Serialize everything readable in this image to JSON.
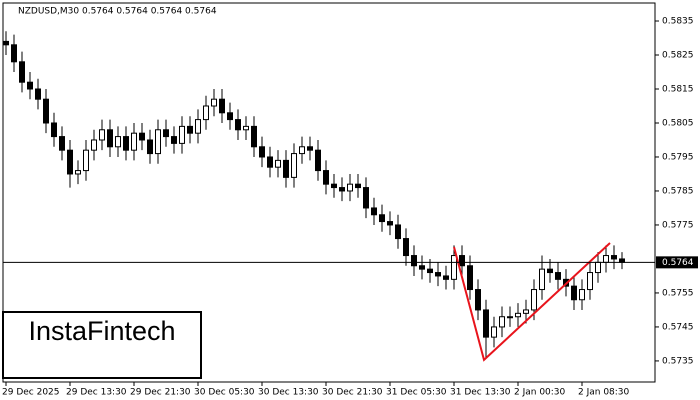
{
  "chart_data": {
    "type": "candlestick",
    "title": "NZDUSD,M30  0.5764 0.5764 0.5764 0.5764",
    "logo": "InstaFintech",
    "categories": [
      "29 Dec 2025",
      null,
      null,
      null,
      null,
      null,
      null,
      null,
      "29 Dec 13:30",
      null,
      null,
      null,
      null,
      null,
      null,
      null,
      "29 Dec 21:30",
      null,
      null,
      null,
      null,
      null,
      null,
      null,
      "30 Dec 05:30",
      null,
      null,
      null,
      null,
      null,
      null,
      null,
      "30 Dec 13:30",
      null,
      null,
      null,
      null,
      null,
      null,
      null,
      "30 Dec 21:30",
      null,
      null,
      null,
      null,
      null,
      null,
      null,
      "31 Dec 05:30",
      null,
      null,
      null,
      null,
      null,
      null,
      null,
      "31 Dec 13:30",
      null,
      null,
      null,
      null,
      null,
      null,
      null,
      "2 Jan 00:30",
      null,
      null,
      null,
      null,
      null,
      null,
      null,
      "2 Jan 08:30",
      null,
      null,
      null,
      null,
      null
    ],
    "open": [
      0.5829,
      0.5828,
      0.5823,
      0.5817,
      0.5815,
      0.5812,
      0.5805,
      0.5801,
      0.5797,
      0.579,
      0.5791,
      0.5797,
      0.58,
      0.5803,
      0.5798,
      0.5801,
      0.5797,
      0.5802,
      0.58,
      0.5796,
      0.5803,
      0.5801,
      0.5799,
      0.5804,
      0.5802,
      0.5806,
      0.581,
      0.5812,
      0.5808,
      0.5806,
      0.5803,
      0.5804,
      0.5798,
      0.5795,
      0.5792,
      0.5794,
      0.5789,
      0.5796,
      0.5798,
      0.5797,
      0.5791,
      0.5787,
      0.5786,
      0.5785,
      0.5787,
      0.5786,
      0.578,
      0.5778,
      0.5776,
      0.5775,
      0.5771,
      0.5766,
      0.5763,
      0.5762,
      0.5761,
      0.576,
      0.5759,
      0.5766,
      0.5763,
      0.5756,
      0.575,
      0.5742,
      0.5745,
      0.5748,
      0.5748,
      0.5749,
      0.575,
      0.5756,
      0.5762,
      0.5761,
      0.5759,
      0.5757,
      0.5753,
      0.5756,
      0.5761,
      0.5764,
      0.5766,
      0.5765
    ],
    "high": [
      0.5832,
      0.5831,
      0.5826,
      0.582,
      0.5818,
      0.5815,
      0.5808,
      0.5804,
      0.58,
      0.5794,
      0.58,
      0.5803,
      0.5806,
      0.5806,
      0.5804,
      0.5804,
      0.5805,
      0.5805,
      0.5803,
      0.5806,
      0.5806,
      0.5804,
      0.5807,
      0.5807,
      0.5809,
      0.5813,
      0.5815,
      0.5815,
      0.5811,
      0.5809,
      0.5807,
      0.5807,
      0.5801,
      0.5798,
      0.5797,
      0.5797,
      0.5799,
      0.5801,
      0.5801,
      0.58,
      0.5794,
      0.579,
      0.5789,
      0.579,
      0.579,
      0.5789,
      0.5783,
      0.5781,
      0.5779,
      0.5778,
      0.5774,
      0.5769,
      0.5766,
      0.5765,
      0.5764,
      0.5763,
      0.5769,
      0.5769,
      0.5766,
      0.5759,
      0.5753,
      0.5748,
      0.5751,
      0.5751,
      0.5752,
      0.5753,
      0.5759,
      0.5766,
      0.5765,
      0.5764,
      0.5762,
      0.576,
      0.5759,
      0.5764,
      0.5767,
      0.5769,
      0.5769,
      0.5767
    ],
    "low": [
      0.5825,
      0.582,
      0.5814,
      0.5812,
      0.5809,
      0.5802,
      0.5798,
      0.5794,
      0.5786,
      0.5787,
      0.5788,
      0.5794,
      0.5797,
      0.5795,
      0.5795,
      0.5794,
      0.5794,
      0.5797,
      0.5793,
      0.5793,
      0.5798,
      0.5796,
      0.5796,
      0.5799,
      0.5799,
      0.5803,
      0.5807,
      0.5805,
      0.5803,
      0.58,
      0.58,
      0.5795,
      0.5792,
      0.5789,
      0.5789,
      0.5786,
      0.5786,
      0.5793,
      0.5794,
      0.5788,
      0.5784,
      0.5783,
      0.5782,
      0.5782,
      0.5783,
      0.5777,
      0.5775,
      0.5773,
      0.5772,
      0.5768,
      0.5763,
      0.576,
      0.5759,
      0.5758,
      0.5757,
      0.5756,
      0.5756,
      0.576,
      0.5753,
      0.5747,
      0.5736,
      0.5739,
      0.5742,
      0.5745,
      0.5745,
      0.5746,
      0.5747,
      0.5753,
      0.5758,
      0.5756,
      0.5754,
      0.575,
      0.575,
      0.5753,
      0.5758,
      0.5761,
      0.5762,
      0.5762
    ],
    "close": [
      0.5828,
      0.5823,
      0.5817,
      0.5815,
      0.5812,
      0.5805,
      0.5801,
      0.5797,
      0.579,
      0.5791,
      0.5797,
      0.58,
      0.5803,
      0.5798,
      0.5801,
      0.5797,
      0.5802,
      0.58,
      0.5796,
      0.5803,
      0.5801,
      0.5799,
      0.5804,
      0.5802,
      0.5806,
      0.581,
      0.5812,
      0.5808,
      0.5806,
      0.5803,
      0.5804,
      0.5798,
      0.5795,
      0.5792,
      0.5794,
      0.5789,
      0.5796,
      0.5798,
      0.5797,
      0.5791,
      0.5787,
      0.5786,
      0.5785,
      0.5787,
      0.5786,
      0.578,
      0.5778,
      0.5776,
      0.5775,
      0.5771,
      0.5766,
      0.5763,
      0.5762,
      0.5761,
      0.576,
      0.5759,
      0.5766,
      0.5763,
      0.5756,
      0.575,
      0.5742,
      0.5745,
      0.5748,
      0.5748,
      0.5749,
      0.575,
      0.5756,
      0.5762,
      0.5761,
      0.5759,
      0.5757,
      0.5753,
      0.5756,
      0.5761,
      0.5764,
      0.5766,
      0.5765,
      0.5764
    ],
    "up_color": "#ffffff",
    "down_color": "#000000",
    "color": "#000000",
    "ylim": [
      0.57288,
      0.58403
    ],
    "yticks": [
      0.5835,
      0.5825,
      0.5815,
      0.5805,
      0.5795,
      0.5785,
      0.5775,
      0.5755,
      0.5745,
      0.5735
    ],
    "current_price": 0.5764,
    "pattern": {
      "color": "#e8141c",
      "x": [
        56,
        59.75,
        75.5
      ],
      "values": [
        0.57685,
        0.57353,
        0.57697
      ]
    }
  }
}
